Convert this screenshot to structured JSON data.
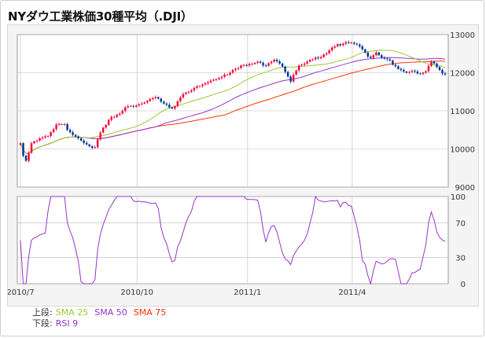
{
  "title": "NYダウ工業株価30種平均（.DJI）",
  "legend": {
    "upper_label": "上段:",
    "lower_label": "下段:",
    "sma25": {
      "label": "SMA 25",
      "color": "#99cc33"
    },
    "sma50": {
      "label": "SMA 50",
      "color": "#9933cc"
    },
    "sma75": {
      "label": "SMA 75",
      "color": "#ff3300"
    },
    "rsi": {
      "label": "RSI 9",
      "color": "#9933cc"
    }
  },
  "colors": {
    "up": "#ff0033",
    "down": "#003399",
    "grid": "#bbbbbb",
    "panel_bg": "#ffffff"
  },
  "chart_data": [
    {
      "type": "candlestick",
      "title": "",
      "ylim": [
        9000,
        13000
      ],
      "yticks": [
        "13000",
        "12000",
        "11000",
        "10000",
        "9000"
      ],
      "xticks": [
        "2010/7",
        "2010/10",
        "2011/1",
        "2011/4"
      ],
      "close": [
        10150,
        9820,
        9690,
        9900,
        10150,
        10200,
        10220,
        10280,
        10300,
        10330,
        10340,
        10440,
        10520,
        10640,
        10650,
        10650,
        10650,
        10500,
        10440,
        10370,
        10330,
        10280,
        10220,
        10160,
        10120,
        10070,
        10030,
        10050,
        10250,
        10430,
        10560,
        10630,
        10760,
        10840,
        10840,
        10900,
        10930,
        11000,
        11090,
        11120,
        11130,
        11110,
        11140,
        11170,
        11190,
        11220,
        11260,
        11310,
        11330,
        11360,
        11320,
        11240,
        11190,
        11160,
        11090,
        11060,
        11120,
        11250,
        11350,
        11440,
        11480,
        11500,
        11540,
        11600,
        11640,
        11650,
        11690,
        11720,
        11750,
        11790,
        11820,
        11830,
        11860,
        11890,
        11950,
        11950,
        12000,
        12070,
        12100,
        12120,
        12190,
        12200,
        12190,
        12230,
        12230,
        12260,
        12290,
        12260,
        12190,
        12180,
        12250,
        12290,
        12340,
        12300,
        12240,
        12160,
        12020,
        11900,
        11770,
        11950,
        12060,
        12190,
        12210,
        12240,
        12290,
        12340,
        12350,
        12400,
        12380,
        12410,
        12480,
        12510,
        12590,
        12660,
        12690,
        12750,
        12720,
        12760,
        12800,
        12790,
        12790,
        12760,
        12740,
        12690,
        12610,
        12530,
        12420,
        12390,
        12460,
        12530,
        12460,
        12400,
        12370,
        12350,
        12320,
        12210,
        12170,
        12100,
        12070,
        12030,
        12000,
        12020,
        12050,
        12030,
        11980,
        11970,
        12000,
        12040,
        12180,
        12290,
        12240,
        12150,
        12070,
        11980,
        11950
      ]
    },
    {
      "type": "line",
      "title": "RSI 9",
      "ylim": [
        0,
        100
      ],
      "yticks": [
        "100",
        "70",
        "30",
        "0"
      ]
    }
  ]
}
